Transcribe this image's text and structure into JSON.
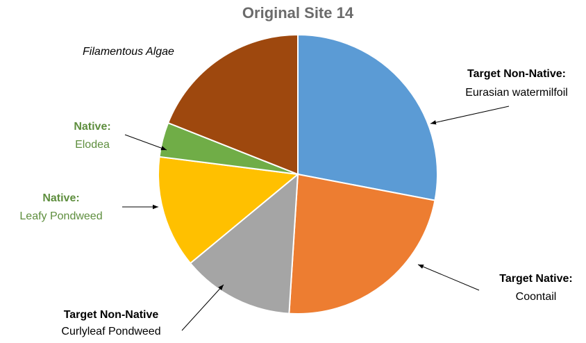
{
  "chart_data": {
    "type": "pie",
    "title": "Original Site 14",
    "categories": [
      "Eurasian watermilfoil",
      "Coontail",
      "Curlyleaf Pondweed",
      "Leafy Pondweed",
      "Elodea",
      "Filamentous Algae"
    ],
    "headings": [
      "Target Non-Native:",
      "Target Native:",
      "Target Non-Native",
      "Native:",
      "Native:",
      null
    ],
    "values": [
      28,
      23,
      13,
      13,
      4,
      19
    ],
    "colors": [
      "#5b9bd5",
      "#ed7d31",
      "#a5a5a5",
      "#ffc000",
      "#70ad47",
      "#9e480e"
    ],
    "label_colors": [
      "#000000",
      "#000000",
      "#000000",
      "#5e8e3e",
      "#5e8e3e",
      "#000000"
    ]
  }
}
